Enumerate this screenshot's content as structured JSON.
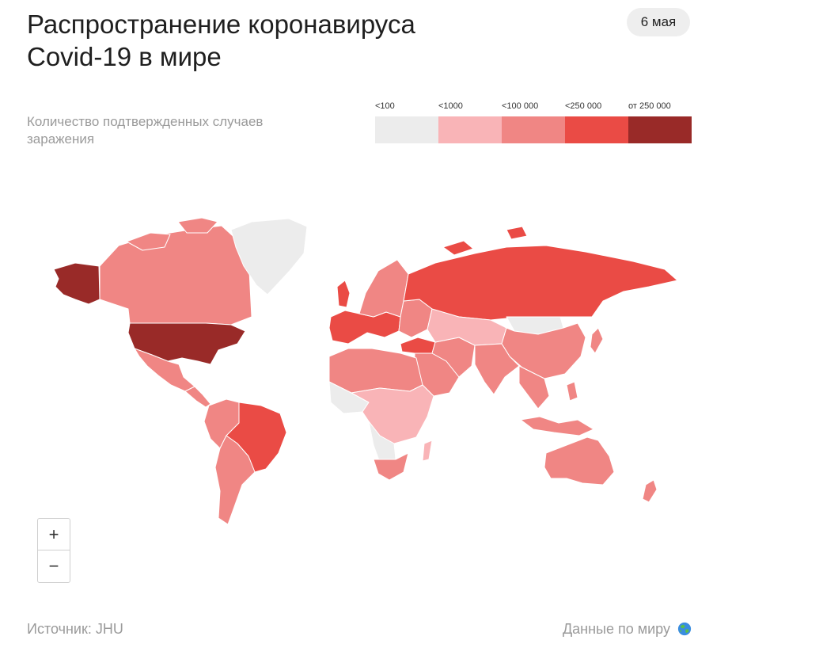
{
  "title": {
    "line1": "Распространение коронавируса",
    "line2": "Covid-19 в мире"
  },
  "date_badge": "6 мая",
  "legend": {
    "description_line1": "Количество подтвержденных случаев",
    "description_line2": "заражения",
    "bins": [
      {
        "label": "<100",
        "color": "#ececec"
      },
      {
        "label": "<1000",
        "color": "#f9b4b7"
      },
      {
        "label": "<100 000",
        "color": "#f08684"
      },
      {
        "label": "<250 000",
        "color": "#ea4b45"
      },
      {
        "label": "от 250 000",
        "color": "#992a28"
      }
    ]
  },
  "map": {
    "regions": [
      {
        "id": "alaska",
        "name": "Alaska",
        "bin": 4
      },
      {
        "id": "canada",
        "name": "Canada",
        "bin": 2
      },
      {
        "id": "greenland",
        "name": "Greenland",
        "bin": 0
      },
      {
        "id": "usa",
        "name": "USA",
        "bin": 4
      },
      {
        "id": "mexico",
        "name": "Mexico",
        "bin": 2
      },
      {
        "id": "central-america",
        "name": "Central America",
        "bin": 2
      },
      {
        "id": "brazil",
        "name": "Brazil",
        "bin": 3
      },
      {
        "id": "peru",
        "name": "Peru",
        "bin": 2
      },
      {
        "id": "south-america-south",
        "name": "Southern South America",
        "bin": 2
      },
      {
        "id": "western-europe",
        "name": "Western Europe",
        "bin": 3
      },
      {
        "id": "eastern-europe",
        "name": "Eastern Europe",
        "bin": 2
      },
      {
        "id": "russia",
        "name": "Russia",
        "bin": 3
      },
      {
        "id": "turkey",
        "name": "Turkey",
        "bin": 3
      },
      {
        "id": "north-africa",
        "name": "North Africa",
        "bin": 2
      },
      {
        "id": "central-africa",
        "name": "Central Africa",
        "bin": 1
      },
      {
        "id": "west-africa-low",
        "name": "West Africa",
        "bin": 0
      },
      {
        "id": "southern-africa",
        "name": "South Africa",
        "bin": 2
      },
      {
        "id": "middle-east",
        "name": "Middle East",
        "bin": 2
      },
      {
        "id": "central-asia",
        "name": "Central Asia",
        "bin": 1
      },
      {
        "id": "india",
        "name": "India",
        "bin": 2
      },
      {
        "id": "china",
        "name": "China",
        "bin": 2
      },
      {
        "id": "mongolia",
        "name": "Mongolia",
        "bin": 0
      },
      {
        "id": "japan",
        "name": "Japan",
        "bin": 2
      },
      {
        "id": "southeast-asia",
        "name": "Southeast Asia",
        "bin": 2
      },
      {
        "id": "australia",
        "name": "Australia",
        "bin": 2
      },
      {
        "id": "new-zealand",
        "name": "New Zealand",
        "bin": 2
      }
    ]
  },
  "zoom": {
    "in_label": "+",
    "out_label": "−"
  },
  "source": "Источник: JHU",
  "world_link": "Данные по миру"
}
